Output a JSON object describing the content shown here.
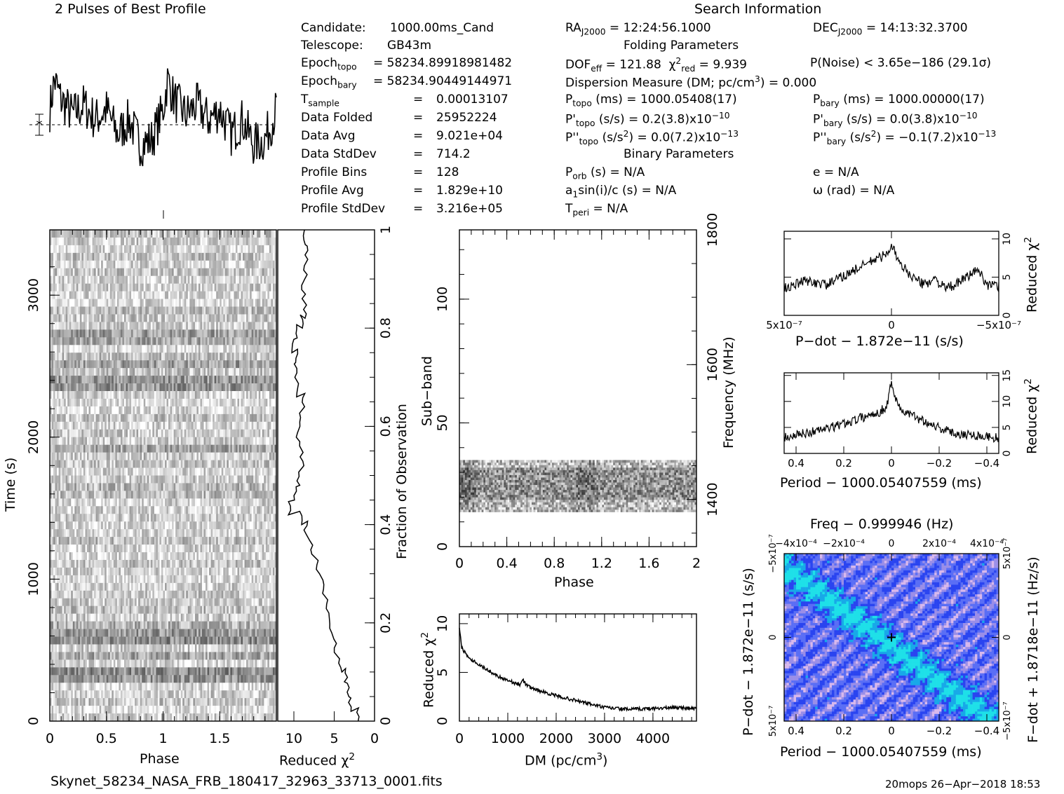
{
  "header": {
    "profile_title": "2 Pulses of Best Profile",
    "search_title": "Search Information",
    "folding_title": "Folding Parameters",
    "binary_title": "Binary Parameters"
  },
  "info_left": [
    [
      "Candidate:",
      "1000.00ms_Cand"
    ],
    [
      "Telescope:",
      "GB43m"
    ],
    [
      "Epoch_topo",
      "= 58234.89918981482"
    ],
    [
      "Epoch_bary",
      "= 58234.90449144971"
    ],
    [
      "T_sample",
      "=",
      "0.00013107"
    ],
    [
      "Data Folded",
      "=",
      "25952224"
    ],
    [
      "Data Avg",
      "=",
      "9.021e+04"
    ],
    [
      "Data StdDev",
      "=",
      "714.2"
    ],
    [
      "Profile Bins",
      "=",
      "128"
    ],
    [
      "Profile Avg",
      "=",
      "1.829e+10"
    ],
    [
      "Profile StdDev",
      "=",
      "3.216e+05"
    ]
  ],
  "search_info": {
    "ra": "= 12:24:56.1000",
    "dec": "= 14:13:32.3700",
    "dof": "= 121.88",
    "chi2red": "= 9.939",
    "pnoise": "P(Noise) < 3.65e−186   (29.1σ)",
    "dm_label": "Dispersion Measure (DM; pc/cm",
    "dm_value": ") = 0.000",
    "ptopo": "(ms) =  1000.05408(17)",
    "pbary": "(ms) =  1000.00000(17)",
    "pdtopo": "(s/s) =  0.2(3.8)x10",
    "pdtopo_exp": "−10",
    "pdbary": "(s/s) = 0.0(3.8)x10",
    "pdbary_exp": "−10",
    "pddtopo": "(s/s",
    "pddtopo_val": ") = 0.0(7.2)x10",
    "pddtopo_exp": "−13",
    "pddbary": "(s/s",
    "pddbary_val": ") = −0.1(7.2)x10",
    "pddbary_exp": "−13",
    "porb": "(s) = N/A",
    "a1": "a",
    "a1_rest": "sin(i)/c (s) = N/A",
    "tperi": "= N/A",
    "e": "e = N/A",
    "omega": "ω (rad) = N/A"
  },
  "footer": {
    "filename": "Skynet_58234_NASA_FRB_180417_32963_33713_0001.fits",
    "stamp": "20mops 26−Apr−2018 18:53"
  },
  "axis_labels": {
    "time": "Time (s)",
    "phase": "Phase",
    "reduced_chi2": "Reduced χ",
    "fraction": "Fraction of Observation",
    "subband": "Sub−band",
    "frequency": "Frequency (MHz)",
    "dm": "DM (pc/cm",
    "pdot_x": "P−dot − 1.872e−11 (s/s)",
    "period_x": "Period − 1000.05407559 (ms)",
    "freq_top": "Freq − 0.999946 (Hz)",
    "pdot_y": "P−dot − 1.872e−11 (s/s)",
    "fdot_y": "F−dot + 1.8718e−11 (Hz/s)"
  },
  "ticks": {
    "time_phase_x": [
      "0",
      "0.5",
      "1",
      "1.5"
    ],
    "time_y": [
      "0",
      "1000",
      "2000",
      "3000"
    ],
    "redchi_x": [
      "10",
      "5",
      "0"
    ],
    "fraction_y": [
      "0",
      "0.2",
      "0.4",
      "0.6",
      "0.8",
      "1"
    ],
    "subband_x": [
      "0",
      "0.4",
      "0.8",
      "1.2",
      "1.6",
      "2"
    ],
    "subband_y": [
      "0",
      "50",
      "100"
    ],
    "freq_y": [
      "1400",
      "1600",
      "1800"
    ],
    "dm_x": [
      "0",
      "1000",
      "2000",
      "3000",
      "4000"
    ],
    "dm_y": [
      "0",
      "5",
      "10"
    ],
    "pdot_x": [
      "5x10⁻⁷",
      "0",
      "−5x10⁻⁷"
    ],
    "pdot_y": [
      "0",
      "5",
      "10"
    ],
    "period_x": [
      "0.4",
      "0.2",
      "0",
      "−0.2",
      "−0.4"
    ],
    "period_y": [
      "0",
      "5",
      "10",
      "15"
    ],
    "freq_top": [
      "−4x10⁻⁴",
      "−2x10⁻⁴",
      "0",
      "2x10⁻⁴",
      "4x10⁻⁴"
    ],
    "pd_left": [
      "−5x10⁻⁷",
      "0",
      "5x10⁻⁷"
    ],
    "fd_right": [
      "5x10⁻⁷",
      "0",
      "−5x10⁻⁷"
    ]
  },
  "chart_data": [
    {
      "type": "line",
      "title": "2 Pulses of Best Profile",
      "xlabel": "Phase",
      "ylabel": "",
      "xlim": [
        0,
        2
      ],
      "description_pts": [
        [
          0,
          0.3
        ],
        [
          0.04,
          0.9
        ],
        [
          0.1,
          0.5
        ],
        [
          0.2,
          0.2
        ],
        [
          0.3,
          0.4
        ],
        [
          0.4,
          0.1
        ],
        [
          0.5,
          0.3
        ],
        [
          0.6,
          -0.2
        ],
        [
          0.7,
          0.1
        ],
        [
          0.8,
          -0.4
        ],
        [
          0.9,
          -0.3
        ],
        [
          1.0,
          0.3
        ],
        [
          1.04,
          0.9
        ],
        [
          1.1,
          0.5
        ],
        [
          1.2,
          0.2
        ],
        [
          1.3,
          0.4
        ],
        [
          1.4,
          0.1
        ],
        [
          1.5,
          0.3
        ],
        [
          1.6,
          -0.2
        ],
        [
          1.7,
          0.1
        ],
        [
          1.8,
          -0.4
        ],
        [
          1.9,
          -0.3
        ],
        [
          2.0,
          0.3
        ]
      ]
    },
    {
      "type": "heatmap",
      "title": "",
      "xlabel": "Phase",
      "ylabel": "Time (s)",
      "xlim": [
        0,
        2
      ],
      "ylim": [
        0,
        3400
      ]
    },
    {
      "type": "line",
      "title": "",
      "xlabel": "Reduced χ²",
      "ylabel": "Fraction of Observation",
      "xlim": [
        12,
        0
      ],
      "ylim": [
        0,
        1
      ],
      "points": [
        [
          2,
          0
        ],
        [
          3,
          0.02
        ],
        [
          3.2,
          0.05
        ],
        [
          3.5,
          0.08
        ],
        [
          4.2,
          0.1
        ],
        [
          4.8,
          0.14
        ],
        [
          5.5,
          0.18
        ],
        [
          5.8,
          0.22
        ],
        [
          6.5,
          0.26
        ],
        [
          7.0,
          0.3
        ],
        [
          7.8,
          0.34
        ],
        [
          8.5,
          0.38
        ],
        [
          9.2,
          0.4
        ],
        [
          10.5,
          0.42
        ],
        [
          9.8,
          0.45
        ],
        [
          9.5,
          0.48
        ],
        [
          9.0,
          0.52
        ],
        [
          9.5,
          0.56
        ],
        [
          9.2,
          0.6
        ],
        [
          8.8,
          0.64
        ],
        [
          9.5,
          0.66
        ],
        [
          9.8,
          0.7
        ],
        [
          9.6,
          0.73
        ],
        [
          10.2,
          0.75
        ],
        [
          9.8,
          0.78
        ],
        [
          9.0,
          0.8
        ],
        [
          8.6,
          0.82
        ],
        [
          8.8,
          0.86
        ],
        [
          8.6,
          0.9
        ],
        [
          8.4,
          0.94
        ],
        [
          8.6,
          0.97
        ],
        [
          8.5,
          1.0
        ]
      ]
    },
    {
      "type": "heatmap",
      "title": "",
      "xlabel": "Phase",
      "ylabel": "Sub−band",
      "xlim": [
        0,
        2
      ],
      "ylim": [
        0,
        128
      ],
      "y2label": "Frequency (MHz)",
      "y2ticks": [
        1400,
        1600,
        1800
      ]
    },
    {
      "type": "line",
      "title": "",
      "xlabel": "DM (pc/cm³)",
      "ylabel": "Reduced χ²",
      "xlim": [
        0,
        4900
      ],
      "ylim": [
        0,
        11
      ],
      "points": [
        [
          0,
          9.5
        ],
        [
          50,
          7.5
        ],
        [
          200,
          6.5
        ],
        [
          500,
          5.5
        ],
        [
          800,
          4.6
        ],
        [
          1000,
          4.2
        ],
        [
          1250,
          3.7
        ],
        [
          1300,
          4.3
        ],
        [
          1400,
          3.6
        ],
        [
          1600,
          3.2
        ],
        [
          2000,
          2.6
        ],
        [
          2500,
          2.0
        ],
        [
          3000,
          1.4
        ],
        [
          3500,
          1.2
        ],
        [
          4000,
          1.3
        ],
        [
          4500,
          1.4
        ],
        [
          4900,
          1.3
        ]
      ]
    },
    {
      "type": "line",
      "title": "",
      "xlabel": "P−dot − 1.872e−11 (s/s)",
      "ylabel": "Reduced χ²",
      "xlim": [
        5e-07,
        -5e-07
      ],
      "ylim": [
        0,
        11
      ],
      "points": [
        [
          5e-07,
          3.5
        ],
        [
          4e-07,
          4.5
        ],
        [
          3e-07,
          4.0
        ],
        [
          2e-07,
          5.5
        ],
        [
          1e-07,
          7.0
        ],
        [
          2e-08,
          8.0
        ],
        [
          0,
          9.5
        ],
        [
          -3e-08,
          7.0
        ],
        [
          -1e-07,
          5.0
        ],
        [
          -1.5e-07,
          4.0
        ],
        [
          -2e-07,
          4.8
        ],
        [
          -2.5e-07,
          3.5
        ],
        [
          -3e-07,
          4.0
        ],
        [
          -3.5e-07,
          5.0
        ],
        [
          -4e-07,
          6.0
        ],
        [
          -4.5e-07,
          4.0
        ],
        [
          -5e-07,
          3.8
        ]
      ]
    },
    {
      "type": "line",
      "title": "",
      "xlabel": "Period − 1000.05407559 (ms)",
      "ylabel": "Reduced χ²",
      "xlim": [
        0.45,
        -0.45
      ],
      "ylim": [
        0,
        15
      ],
      "points": [
        [
          0.45,
          3
        ],
        [
          0.35,
          4
        ],
        [
          0.25,
          5
        ],
        [
          0.15,
          6.5
        ],
        [
          0.05,
          8
        ],
        [
          0.02,
          9
        ],
        [
          0,
          14
        ],
        [
          -0.02,
          10
        ],
        [
          -0.05,
          8
        ],
        [
          -0.15,
          6
        ],
        [
          -0.25,
          4
        ],
        [
          -0.35,
          3.5
        ],
        [
          -0.45,
          3
        ]
      ]
    },
    {
      "type": "heatmap",
      "title": "Freq − 0.999946 (Hz)",
      "xlabel": "Period − 1000.05407559 (ms)",
      "ylabel": "P−dot − 1.872e−11 (s/s)",
      "xlim": [
        0.45,
        -0.45
      ],
      "ylim": [
        5e-07,
        -5e-07
      ],
      "colors": [
        "#1a1aff",
        "#00d4e0",
        "#c8a8e8"
      ]
    }
  ]
}
